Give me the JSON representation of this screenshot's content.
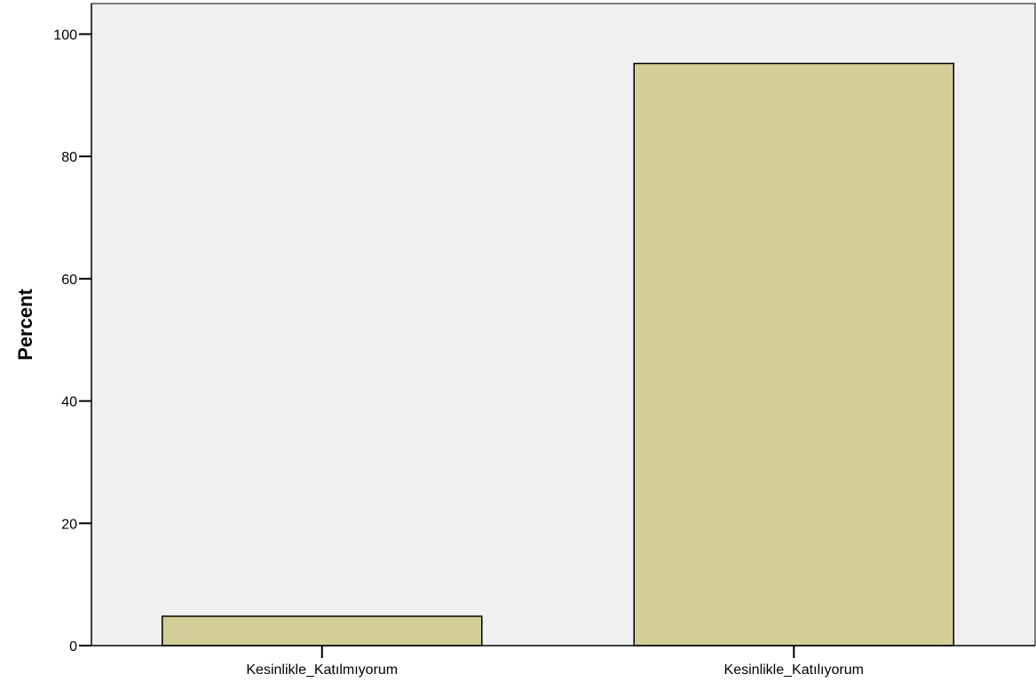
{
  "chart_data": {
    "type": "bar",
    "title": "",
    "xlabel": "",
    "ylabel": "Percent",
    "categories": [
      "Kesinlikle_Katılmıyorum",
      "Kesinlikle_Katılıyorum"
    ],
    "values": [
      4.8,
      95.2
    ],
    "ylim": [
      0,
      100
    ],
    "yticks": [
      0,
      20,
      40,
      60,
      80,
      100
    ],
    "grid": false,
    "legend": "none",
    "colors": {
      "plot_background": "#f0f0f0",
      "bar_fill": "#d3ce98",
      "bar_stroke": "#000000"
    }
  }
}
